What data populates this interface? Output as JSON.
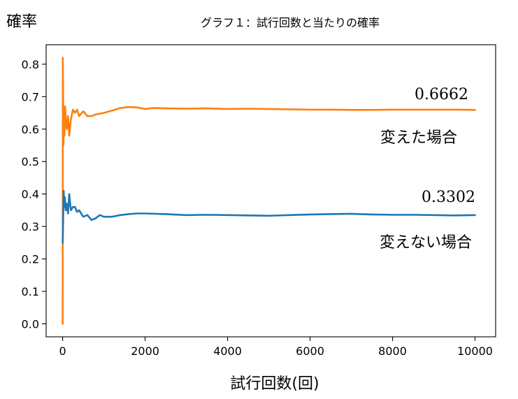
{
  "chart_data": {
    "type": "line",
    "title": "グラフ１：試行回数と当たりの確率",
    "ylabel": "確率",
    "xlabel": "試行回数(回)",
    "xlim": [
      -400,
      10500
    ],
    "ylim": [
      -0.04,
      0.86
    ],
    "x_ticks": [
      0,
      2000,
      4000,
      6000,
      8000,
      10000
    ],
    "x_tick_labels": [
      "0",
      "2000",
      "4000",
      "6000",
      "8000",
      "10000"
    ],
    "y_ticks": [
      0.0,
      0.1,
      0.2,
      0.3,
      0.4,
      0.5,
      0.6,
      0.7,
      0.8
    ],
    "y_tick_labels": [
      "0.0",
      "0.1",
      "0.2",
      "0.3",
      "0.4",
      "0.5",
      "0.6",
      "0.7",
      "0.8"
    ],
    "grid": false,
    "legend": "none",
    "series": [
      {
        "name": "変えた場合",
        "color": "#ff7f0e",
        "final_value_label": "0.6662",
        "points": [
          [
            1,
            0
          ],
          [
            5,
            0.82
          ],
          [
            12,
            0.7
          ],
          [
            20,
            0.55
          ],
          [
            30,
            0.64
          ],
          [
            45,
            0.58
          ],
          [
            60,
            0.67
          ],
          [
            80,
            0.62
          ],
          [
            100,
            0.6
          ],
          [
            130,
            0.64
          ],
          [
            160,
            0.58
          ],
          [
            200,
            0.63
          ],
          [
            250,
            0.66
          ],
          [
            300,
            0.65
          ],
          [
            350,
            0.66
          ],
          [
            400,
            0.64
          ],
          [
            500,
            0.655
          ],
          [
            600,
            0.64
          ],
          [
            700,
            0.64
          ],
          [
            800,
            0.645
          ],
          [
            1000,
            0.65
          ],
          [
            1200,
            0.657
          ],
          [
            1400,
            0.665
          ],
          [
            1600,
            0.668
          ],
          [
            1800,
            0.667
          ],
          [
            2000,
            0.662
          ],
          [
            2200,
            0.665
          ],
          [
            2500,
            0.664
          ],
          [
            3000,
            0.663
          ],
          [
            3500,
            0.664
          ],
          [
            4000,
            0.662
          ],
          [
            4500,
            0.663
          ],
          [
            5000,
            0.662
          ],
          [
            5500,
            0.661
          ],
          [
            6000,
            0.66
          ],
          [
            6500,
            0.66
          ],
          [
            7000,
            0.659
          ],
          [
            7500,
            0.659
          ],
          [
            8000,
            0.66
          ],
          [
            8500,
            0.66
          ],
          [
            9000,
            0.66
          ],
          [
            9500,
            0.66
          ],
          [
            10000,
            0.659
          ]
        ]
      },
      {
        "name": "変えない場合",
        "color": "#1f77b4",
        "final_value_label": "0.3302",
        "points": [
          [
            1,
            0.25
          ],
          [
            10,
            0.3
          ],
          [
            25,
            0.41
          ],
          [
            40,
            0.36
          ],
          [
            55,
            0.39
          ],
          [
            75,
            0.35
          ],
          [
            100,
            0.37
          ],
          [
            130,
            0.34
          ],
          [
            160,
            0.4
          ],
          [
            200,
            0.35
          ],
          [
            250,
            0.36
          ],
          [
            300,
            0.36
          ],
          [
            350,
            0.345
          ],
          [
            400,
            0.35
          ],
          [
            500,
            0.33
          ],
          [
            600,
            0.335
          ],
          [
            700,
            0.32
          ],
          [
            800,
            0.325
          ],
          [
            900,
            0.335
          ],
          [
            1000,
            0.33
          ],
          [
            1200,
            0.33
          ],
          [
            1400,
            0.335
          ],
          [
            1600,
            0.338
          ],
          [
            1800,
            0.34
          ],
          [
            2000,
            0.34
          ],
          [
            2500,
            0.338
          ],
          [
            3000,
            0.335
          ],
          [
            3500,
            0.336
          ],
          [
            4000,
            0.335
          ],
          [
            4500,
            0.334
          ],
          [
            5000,
            0.333
          ],
          [
            5500,
            0.335
          ],
          [
            6000,
            0.337
          ],
          [
            6500,
            0.338
          ],
          [
            7000,
            0.339
          ],
          [
            7500,
            0.337
          ],
          [
            8000,
            0.336
          ],
          [
            8500,
            0.336
          ],
          [
            9000,
            0.335
          ],
          [
            9500,
            0.334
          ],
          [
            10000,
            0.335
          ]
        ]
      }
    ]
  }
}
